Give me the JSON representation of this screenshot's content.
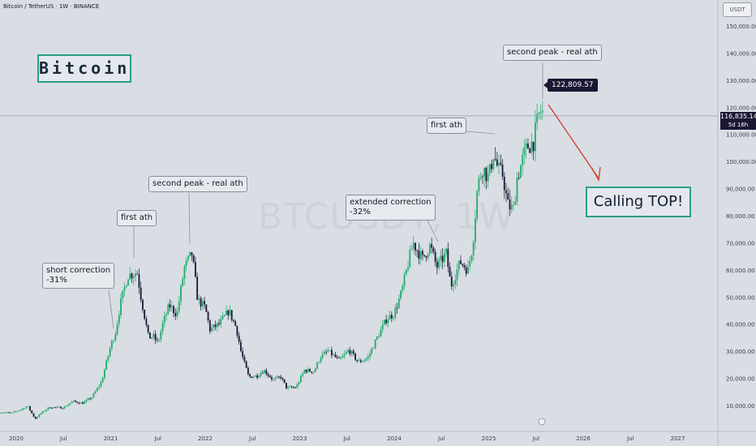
{
  "header": {
    "symbol_line": "Bitcoin / TetherUS · 1W · BINANCE",
    "unit": "USDT"
  },
  "title_box": "Bitcoin",
  "watermark": "BTCUSDT, 1W",
  "call_box": "Calling TOP!",
  "peak_price_label": "122,809.57",
  "current_price": {
    "value": "116,835.14",
    "countdown": "5d 16h"
  },
  "annotations": [
    {
      "id": "short-correction-note",
      "text": "short correction\n-31%"
    },
    {
      "id": "first-ath-2021-note",
      "text": "first ath"
    },
    {
      "id": "second-peak-2021-note",
      "text": "second peak - real ath"
    },
    {
      "id": "extended-correction-note",
      "text": "extended correction\n-32%"
    },
    {
      "id": "first-ath-2025-note",
      "text": "first ath"
    },
    {
      "id": "second-peak-2025-note",
      "text": "second peak - real ath"
    }
  ],
  "colors": {
    "up": "#22ab6e",
    "down": "#1a1733",
    "accent": "#2aa082",
    "arrow": "#d03c2a",
    "background": "#d9dde4"
  },
  "chart_data": {
    "type": "candlestick",
    "title": "Bitcoin",
    "ylim": [
      0,
      155000
    ],
    "y_ticks": [
      10000,
      20000,
      30000,
      40000,
      50000,
      60000,
      70000,
      80000,
      90000,
      100000,
      110000,
      120000,
      130000,
      140000,
      150000
    ],
    "y_tick_labels": [
      "10,000.00",
      "20,000.00",
      "30,000.00",
      "40,000.00",
      "50,000.00",
      "60,000.00",
      "70,000.00",
      "80,000.00",
      "90,000.00",
      "100,000.00",
      "110,000.00",
      "120,000.00",
      "130,000.00",
      "140,000.00",
      "150,000.00"
    ],
    "x_ticks": [
      {
        "label": "2020",
        "t": 2020.0
      },
      {
        "label": "Jul",
        "t": 2020.5
      },
      {
        "label": "2021",
        "t": 2021.0
      },
      {
        "label": "Jul",
        "t": 2021.5
      },
      {
        "label": "2022",
        "t": 2022.0
      },
      {
        "label": "Jul",
        "t": 2022.5
      },
      {
        "label": "2023",
        "t": 2023.0
      },
      {
        "label": "Jul",
        "t": 2023.5
      },
      {
        "label": "2024",
        "t": 2024.0
      },
      {
        "label": "Jul",
        "t": 2024.5
      },
      {
        "label": "2025",
        "t": 2025.0
      },
      {
        "label": "Jul",
        "t": 2025.5
      },
      {
        "label": "2026",
        "t": 2026.0
      },
      {
        "label": "Jul",
        "t": 2026.5
      },
      {
        "label": "2027",
        "t": 2027.0
      }
    ],
    "current_price_line": 116835.14,
    "x_range": [
      2019.8,
      2027.4
    ],
    "weekly_close_path": [
      [
        2019.8,
        7500
      ],
      [
        2019.95,
        7200
      ],
      [
        2020.05,
        8500
      ],
      [
        2020.12,
        9800
      ],
      [
        2020.2,
        5000
      ],
      [
        2020.25,
        6800
      ],
      [
        2020.35,
        9300
      ],
      [
        2020.5,
        9200
      ],
      [
        2020.6,
        11500
      ],
      [
        2020.7,
        10800
      ],
      [
        2020.8,
        13000
      ],
      [
        2020.9,
        18500
      ],
      [
        2021.0,
        32000
      ],
      [
        2021.05,
        37000
      ],
      [
        2021.1,
        47000
      ],
      [
        2021.18,
        58000
      ],
      [
        2021.28,
        59000
      ],
      [
        2021.32,
        50000
      ],
      [
        2021.4,
        35000
      ],
      [
        2021.45,
        35500
      ],
      [
        2021.5,
        33000
      ],
      [
        2021.55,
        40000
      ],
      [
        2021.62,
        47000
      ],
      [
        2021.7,
        43500
      ],
      [
        2021.78,
        61000
      ],
      [
        2021.86,
        66000
      ],
      [
        2021.92,
        49000
      ],
      [
        2022.0,
        46000
      ],
      [
        2022.05,
        38000
      ],
      [
        2022.15,
        40000
      ],
      [
        2022.25,
        45000
      ],
      [
        2022.33,
        38500
      ],
      [
        2022.38,
        29500
      ],
      [
        2022.46,
        20500
      ],
      [
        2022.55,
        21000
      ],
      [
        2022.62,
        23000
      ],
      [
        2022.72,
        19400
      ],
      [
        2022.8,
        20500
      ],
      [
        2022.86,
        16500
      ],
      [
        2022.96,
        16600
      ],
      [
        2023.05,
        23000
      ],
      [
        2023.15,
        22500
      ],
      [
        2023.22,
        28000
      ],
      [
        2023.3,
        30000
      ],
      [
        2023.42,
        26500
      ],
      [
        2023.52,
        30500
      ],
      [
        2023.62,
        26000
      ],
      [
        2023.72,
        27500
      ],
      [
        2023.82,
        35000
      ],
      [
        2023.92,
        42000
      ],
      [
        2024.0,
        44000
      ],
      [
        2024.08,
        52000
      ],
      [
        2024.15,
        63000
      ],
      [
        2024.2,
        70000
      ],
      [
        2024.3,
        64000
      ],
      [
        2024.38,
        69000
      ],
      [
        2024.45,
        61000
      ],
      [
        2024.55,
        66000
      ],
      [
        2024.6,
        54000
      ],
      [
        2024.7,
        63000
      ],
      [
        2024.78,
        60000
      ],
      [
        2024.83,
        69000
      ],
      [
        2024.88,
        90000
      ],
      [
        2024.93,
        98000
      ],
      [
        2025.0,
        94000
      ],
      [
        2025.05,
        103000
      ],
      [
        2025.1,
        97000
      ],
      [
        2025.15,
        95000
      ],
      [
        2025.2,
        84000
      ],
      [
        2025.26,
        82000
      ],
      [
        2025.3,
        94000
      ],
      [
        2025.38,
        103000
      ],
      [
        2025.42,
        106000
      ],
      [
        2025.47,
        107000
      ],
      [
        2025.53,
        117000
      ],
      [
        2025.56,
        119000
      ],
      [
        2025.58,
        116835
      ]
    ]
  }
}
